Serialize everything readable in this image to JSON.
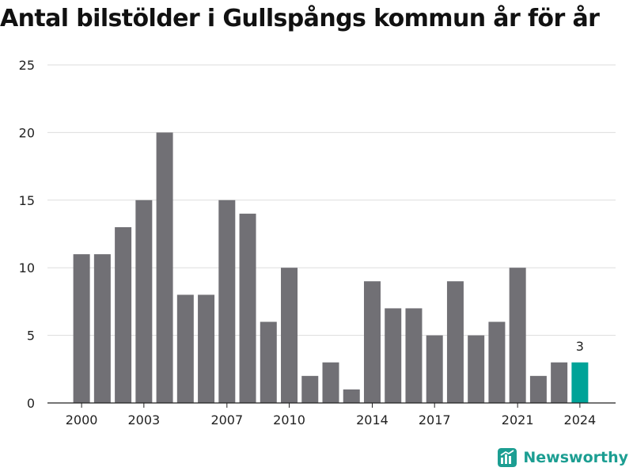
{
  "chart_data": {
    "type": "bar",
    "title": "Antal bilstölder i Gullspångs kommun år för år",
    "categories": [
      "2000",
      "2001",
      "2002",
      "2003",
      "2004",
      "2005",
      "2006",
      "2007",
      "2008",
      "2009",
      "2010",
      "2011",
      "2012",
      "2013",
      "2014",
      "2015",
      "2016",
      "2017",
      "2018",
      "2019",
      "2020",
      "2021",
      "2022",
      "2023",
      "2024"
    ],
    "values": [
      11,
      11,
      13,
      15,
      20,
      8,
      8,
      15,
      14,
      6,
      10,
      2,
      3,
      1,
      9,
      7,
      7,
      5,
      9,
      5,
      6,
      10,
      2,
      3,
      3
    ],
    "x_tick_labels": [
      "2000",
      "2003",
      "2007",
      "2010",
      "2014",
      "2017",
      "2021",
      "2024"
    ],
    "y_ticks": [
      0,
      5,
      10,
      15,
      20,
      25
    ],
    "ylim": [
      0,
      25
    ],
    "grid": true,
    "highlight": {
      "category": "2024",
      "label": "3"
    },
    "colors": {
      "bar": "#717075",
      "highlight": "#00a398",
      "grid": "#dddddd",
      "axis": "#222222"
    }
  },
  "branding": {
    "logo_text": "Newsworthy",
    "logo_color": "#1c9e92"
  }
}
